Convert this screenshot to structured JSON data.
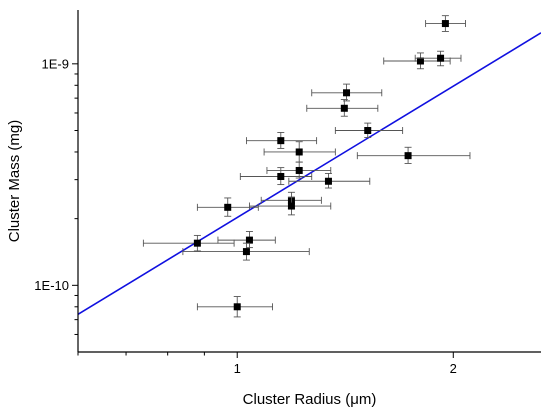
{
  "chart_data": {
    "type": "scatter",
    "xlabel": "Cluster Radius (μm)",
    "ylabel": "Cluster Mass (mg)",
    "x_scale": "log",
    "y_scale": "log",
    "xlim": [
      0.6,
      2.65
    ],
    "ylim": [
      5e-11,
      1.75e-09
    ],
    "x_ticks": [
      {
        "value": 1,
        "label": "1"
      },
      {
        "value": 2,
        "label": "2"
      }
    ],
    "y_ticks": [
      {
        "value": 1e-10,
        "label": "1E-10"
      },
      {
        "value": 1e-09,
        "label": "1E-9"
      }
    ],
    "grid": false,
    "fit_line": {
      "x": [
        0.6,
        2.65
      ],
      "y": [
        7.4e-11,
        1.38e-09
      ],
      "color": "#1010e0"
    },
    "points": [
      {
        "x": 1.95,
        "y": 1.52e-09,
        "xerr": [
          1.83,
          2.08
        ],
        "yerr": [
          1.4e-09,
          1.65e-09
        ]
      },
      {
        "x": 1.8,
        "y": 1.03e-09,
        "xerr": [
          1.6,
          1.98
        ],
        "yerr": [
          9.5e-10,
          1.12e-09
        ]
      },
      {
        "x": 1.92,
        "y": 1.06e-09,
        "xerr": [
          1.77,
          2.05
        ],
        "yerr": [
          9.8e-10,
          1.14e-09
        ]
      },
      {
        "x": 1.42,
        "y": 7.4e-10,
        "xerr": [
          1.27,
          1.59
        ],
        "yerr": [
          6.8e-10,
          8.1e-10
        ]
      },
      {
        "x": 1.41,
        "y": 6.3e-10,
        "xerr": [
          1.25,
          1.57
        ],
        "yerr": [
          5.8e-10,
          6.9e-10
        ]
      },
      {
        "x": 1.52,
        "y": 5e-10,
        "xerr": [
          1.37,
          1.7
        ],
        "yerr": [
          4.65e-10,
          5.4e-10
        ]
      },
      {
        "x": 1.15,
        "y": 4.5e-10,
        "xerr": [
          1.03,
          1.29
        ],
        "yerr": [
          4.15e-10,
          4.9e-10
        ]
      },
      {
        "x": 1.22,
        "y": 4e-10,
        "xerr": [
          1.09,
          1.37
        ],
        "yerr": [
          3.6e-10,
          4.45e-10
        ]
      },
      {
        "x": 1.73,
        "y": 3.85e-10,
        "xerr": [
          1.47,
          2.11
        ],
        "yerr": [
          3.55e-10,
          4.2e-10
        ]
      },
      {
        "x": 1.22,
        "y": 3.3e-10,
        "xerr": [
          1.1,
          1.35
        ],
        "yerr": [
          3.05e-10,
          3.6e-10
        ]
      },
      {
        "x": 1.15,
        "y": 3.1e-10,
        "xerr": [
          1.01,
          1.27
        ],
        "yerr": [
          2.85e-10,
          3.4e-10
        ]
      },
      {
        "x": 1.34,
        "y": 2.95e-10,
        "xerr": [
          1.18,
          1.53
        ],
        "yerr": [
          2.75e-10,
          3.2e-10
        ]
      },
      {
        "x": 1.19,
        "y": 2.42e-10,
        "xerr": [
          1.08,
          1.31
        ],
        "yerr": [
          2.22e-10,
          2.63e-10
        ]
      },
      {
        "x": 1.19,
        "y": 2.28e-10,
        "xerr": [
          1.04,
          1.35
        ],
        "yerr": [
          2.08e-10,
          2.5e-10
        ]
      },
      {
        "x": 0.97,
        "y": 2.25e-10,
        "xerr": [
          0.88,
          1.07
        ],
        "yerr": [
          2.05e-10,
          2.48e-10
        ]
      },
      {
        "x": 1.04,
        "y": 1.6e-10,
        "xerr": [
          0.94,
          1.13
        ],
        "yerr": [
          1.48e-10,
          1.75e-10
        ]
      },
      {
        "x": 0.88,
        "y": 1.55e-10,
        "xerr": [
          0.74,
          0.99
        ],
        "yerr": [
          1.43e-10,
          1.68e-10
        ]
      },
      {
        "x": 1.03,
        "y": 1.42e-10,
        "xerr": [
          0.84,
          1.26
        ],
        "yerr": [
          1.3e-10,
          1.55e-10
        ]
      },
      {
        "x": 1.0,
        "y": 8e-11,
        "xerr": [
          0.88,
          1.12
        ],
        "yerr": [
          7.2e-11,
          8.9e-11
        ]
      }
    ]
  }
}
